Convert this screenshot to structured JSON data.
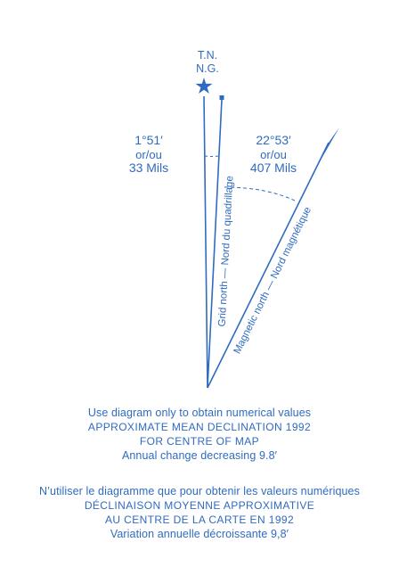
{
  "labels": {
    "true_north": "T.N.",
    "grid_north_abbr": "N.G.",
    "grid_north_line": "Grid north — Nord du quadrillage",
    "magnetic_north_line": "Magnetic north — Nord magnétique"
  },
  "angles": {
    "grid": {
      "degrees": "1°51′",
      "or": "or/ou",
      "mils": "33 Mils",
      "value_degrees": 1.85
    },
    "magnetic": {
      "degrees": "22°53′",
      "or": "or/ou",
      "mils": "407 Mils",
      "value_degrees": 22.883
    }
  },
  "caption_en": {
    "line1": "Use diagram only to obtain numerical values",
    "line2": "APPROXIMATE MEAN DECLINATION 1992",
    "line3": "FOR CENTRE OF MAP",
    "line4": "Annual change decreasing 9.8′"
  },
  "caption_fr": {
    "line1": "N’utiliser le diagramme que pour obtenir les valeurs numériques",
    "line2": "DÉCLINAISON MOYENNE APPROXIMATIVE",
    "line3": "AU CENTRE DE LA CARTE EN 1992",
    "line4": "Variation annuelle décroissante 9,8′"
  },
  "colors": {
    "ink": "#2f6bc1",
    "background": "#ffffff"
  }
}
